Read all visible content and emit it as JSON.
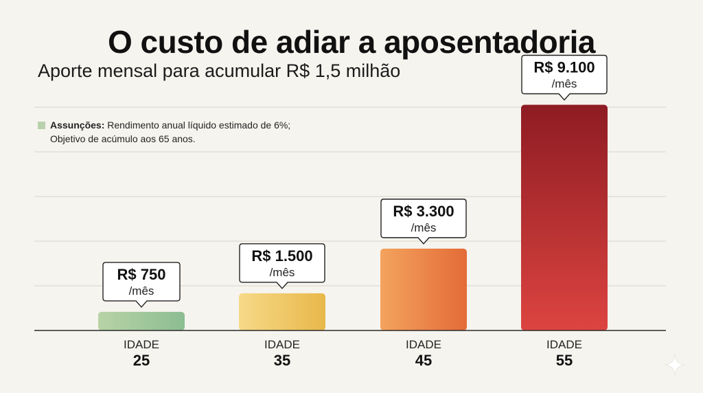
{
  "header": {
    "title": "O custo de adiar a aposentadoria",
    "subtitle": "Aporte mensal para acumular R$ 1,5 milhão"
  },
  "assumptions": {
    "label": "Assunções:",
    "line1": "Rendimento anual líquido estimado de 6%;",
    "line2": "Objetivo de acúmulo aos 65 anos.",
    "swatch_color": "#b9d2ad"
  },
  "chart_data": {
    "type": "bar",
    "title": "O custo de adiar a aposentadoria",
    "subtitle": "Aporte mensal para acumular R$ 1,5 milhão",
    "categories": [
      "25",
      "35",
      "45",
      "55"
    ],
    "category_prefix": "IDADE",
    "values": [
      750,
      1500,
      3300,
      9100
    ],
    "value_labels": [
      "R$ 750",
      "R$ 1.500",
      "R$ 3.300",
      "R$ 9.100"
    ],
    "value_unit": "/mês",
    "ylim": [
      0,
      10000
    ],
    "grid": true,
    "legend": "none",
    "colors": [
      [
        "#b7d3a6",
        "#8cbd92"
      ],
      [
        "#f6d988",
        "#e8b84a"
      ],
      [
        "#f4a35e",
        "#e36b37"
      ],
      [
        "#8e1c23",
        "#dc4440"
      ]
    ]
  },
  "decor": {
    "icon": "sparkle-icon"
  }
}
